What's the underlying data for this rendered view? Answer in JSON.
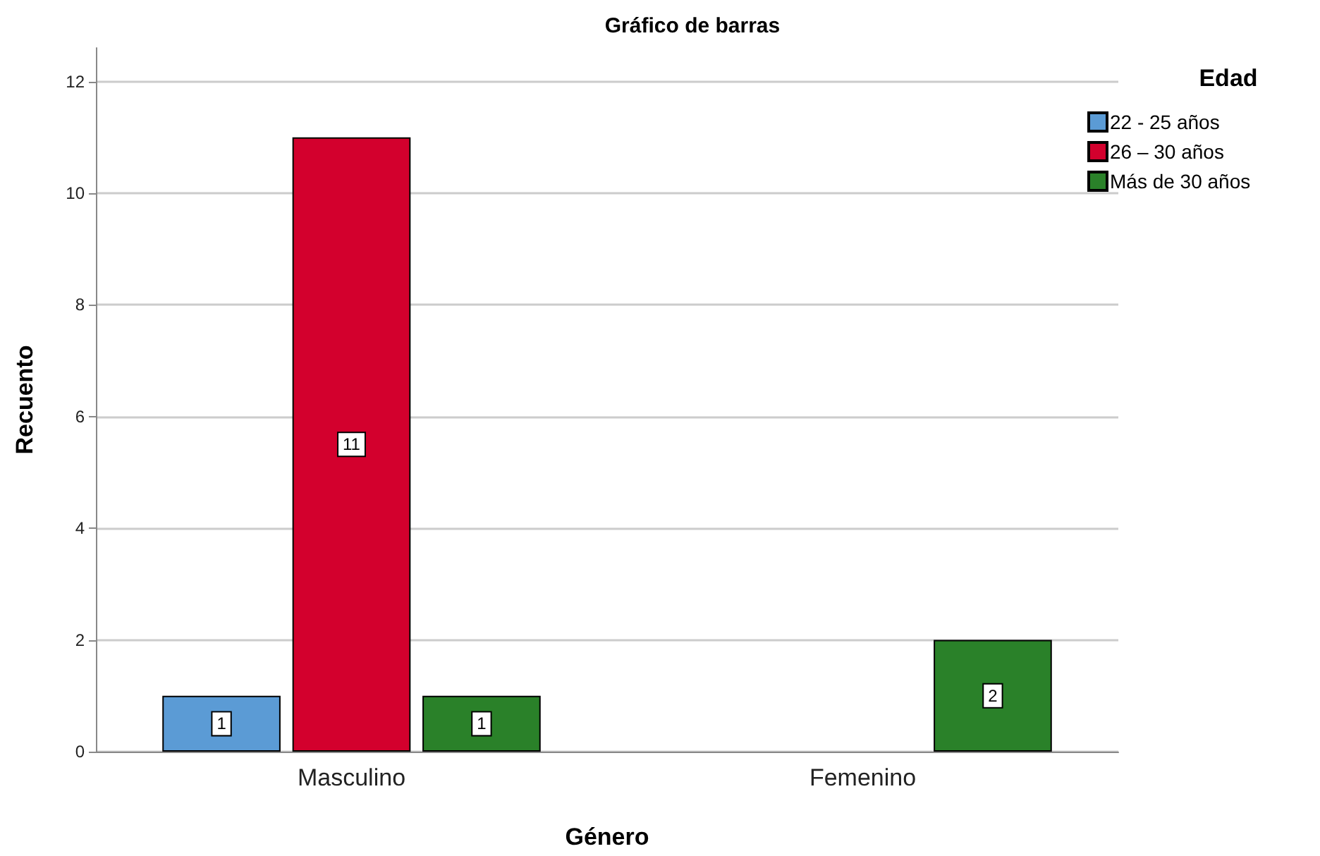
{
  "chart_data": {
    "type": "bar",
    "title": "Gráfico de barras",
    "xlabel": "Género",
    "ylabel": "Recuento",
    "legend_title": "Edad",
    "categories": [
      "Masculino",
      "Femenino"
    ],
    "series": [
      {
        "name": "22 - 25 años",
        "color": "#5b9bd5",
        "values": [
          1,
          null
        ]
      },
      {
        "name": "26 – 30 años",
        "color": "#d3002d",
        "values": [
          11,
          null
        ]
      },
      {
        "name": "Más de 30 años",
        "color": "#2a8129",
        "values": [
          1,
          2
        ]
      }
    ],
    "ylim": [
      0,
      12.6
    ],
    "yticks": [
      0,
      2,
      4,
      6,
      8,
      10,
      12
    ],
    "grid": "y",
    "legend": "top right",
    "data_labels": true
  }
}
